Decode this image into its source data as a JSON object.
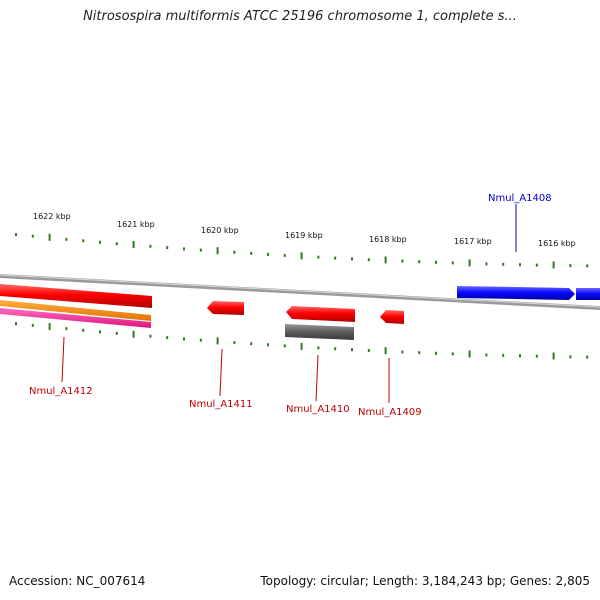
{
  "title": "Nitrosospira multiformis ATCC 25196 chromosome 1, complete s...",
  "accession": "Accession: NC_007614",
  "summary": "Topology: circular; Length: 3,184,243 bp; Genes: 2,805",
  "colors": {
    "backbone": "#8c8c8c",
    "tick": "#2e7d1e",
    "forward_gene": "#1a1aff",
    "reverse_gene": "#ff1a1a",
    "reverse_label": "#c00000",
    "forward_label": "#0000cc",
    "rna_orange": "#ff8c00",
    "rna_pink": "#ff2a9a",
    "pseudo_grey": "#666666"
  },
  "ticks": [
    {
      "label": "1622 kbp"
    },
    {
      "label": "1621 kbp"
    },
    {
      "label": "1620 kbp"
    },
    {
      "label": "1619 kbp"
    },
    {
      "label": "1618 kbp"
    },
    {
      "label": "1617 kbp"
    },
    {
      "label": "1616 kbp"
    }
  ],
  "genes": [
    {
      "name": "Nmul_A1408",
      "strand": "forward"
    },
    {
      "name": "Nmul_A1409",
      "strand": "reverse"
    },
    {
      "name": "Nmul_A1410",
      "strand": "reverse"
    },
    {
      "name": "Nmul_A1411",
      "strand": "reverse"
    },
    {
      "name": "Nmul_A1412",
      "strand": "reverse"
    }
  ]
}
